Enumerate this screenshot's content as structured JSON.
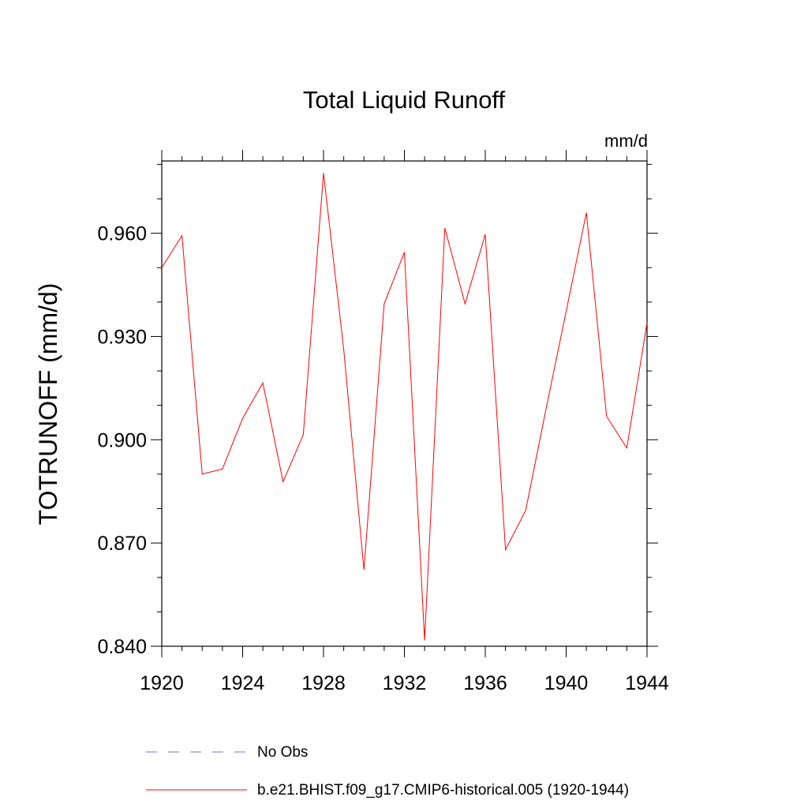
{
  "chart_data": {
    "type": "line",
    "title": "Total Liquid Runoff",
    "units_label": "mm/d",
    "ylabel": "TOTRUNOFF  (mm/d)",
    "xlabel": "",
    "xlim": [
      1920,
      1944
    ],
    "ylim": [
      0.84,
      0.981
    ],
    "x_ticks": [
      1920,
      1924,
      1928,
      1932,
      1936,
      1940,
      1944
    ],
    "x_tick_labels": [
      "1920",
      "1924",
      "1928",
      "1932",
      "1936",
      "1940",
      "1944"
    ],
    "y_ticks": [
      0.84,
      0.87,
      0.9,
      0.93,
      0.96
    ],
    "y_tick_labels": [
      "0.840",
      "0.870",
      "0.900",
      "0.930",
      "0.960"
    ],
    "grid": false,
    "legend_position": "bottom",
    "series": [
      {
        "name": "b.e21.BHIST.f09_g17.CMIP6-historical.005 (1920-1944)",
        "color": "#ff0000",
        "style": "solid",
        "x": [
          1920,
          1921,
          1922,
          1923,
          1924,
          1925,
          1926,
          1927,
          1928,
          1929,
          1930,
          1931,
          1932,
          1933,
          1934,
          1935,
          1936,
          1937,
          1938,
          1939,
          1940,
          1941,
          1942,
          1943,
          1944
        ],
        "values": [
          0.95,
          0.9593,
          0.89,
          0.8915,
          0.9062,
          0.9165,
          0.8878,
          0.9015,
          0.9775,
          0.9262,
          0.8622,
          0.9395,
          0.9545,
          0.8417,
          0.9615,
          0.9395,
          0.9597,
          0.868,
          0.8795,
          0.9088,
          0.9373,
          0.966,
          0.9068,
          0.8976,
          0.934
        ]
      },
      {
        "name": "No Obs",
        "color": "#7a6fd0",
        "style": "dashed",
        "x": [],
        "values": []
      }
    ]
  }
}
